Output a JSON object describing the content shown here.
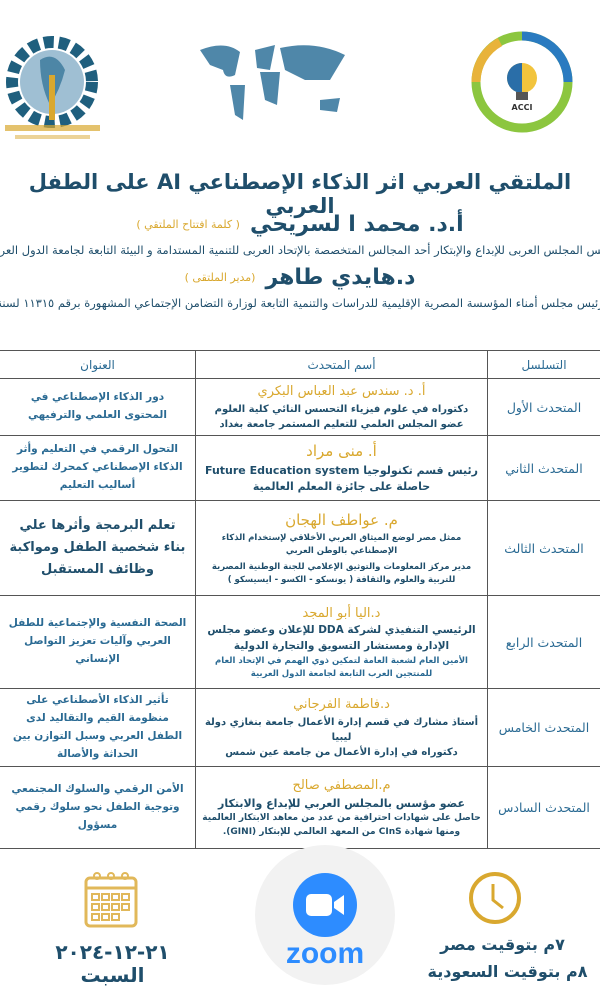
{
  "logos": {
    "left": "المؤسسة المصرية الإقليمية للدراسات والتنمية",
    "right": "ACCI"
  },
  "title": "الملتقي العربي اثر الذكاء الإصطناعي AI على الطفل العربي",
  "hosts": [
    {
      "name": "أ.د. محمد ا لسريحي",
      "role": "( كلمة افتتاح الملتقي )",
      "desc": "رئيس المجلس العربى للإبداع والإبتكار أحد المجالس المتخصصة بالإتحاد العربى للتنمية المستدامة و البيئة التابعة لجامعة الدول العربية"
    },
    {
      "name": "د.هايدي طاهر",
      "role": "(مدير الملتقى )",
      "desc": "رئيس مجلس أمناء المؤسسة المصرية الإقليمية للدراسات والتنمية التابعة لوزارة التضامن الإجتماعي المشهورة برقم ١١٣١٥ لسنة"
    }
  ],
  "table": {
    "headers": [
      "التسلسل",
      "أسم المتحدث",
      "العنوان"
    ],
    "rows": [
      {
        "seq": "المتحدث الأول",
        "name": "أ. د. سندس عبد العباس البكري",
        "lines": [
          "دكتوراه في علوم فيزياء التحسس النائي كلية العلوم",
          "عضو المجلس العلمي للتعليم المستمر جامعة بغداد"
        ],
        "topic": "دور الذكاء الإصطناعي في المحتوى العلمي والترفيهي"
      },
      {
        "seq": "المتحدث الثاني",
        "name": "أ. منى مراد",
        "lines": [
          "رئيس قسم تكنولوجيا Future Education system",
          "حاصلة على جائزة المعلم العالمية"
        ],
        "topic": "التحول الرقمي في التعليم وأثر الذكاء الإصطناعي كمحرك لتطوير أساليب التعليم"
      },
      {
        "seq": "المتحدث الثالث",
        "name": "م. عواطف الهجان",
        "lines": [
          "ممثل مصر لوضع الميثاق العربي الأخلاقي لإستخدام الذكاء الإصطناعي بالوطن العربي",
          "مدير مركز المعلومات والتوثيق الإعلامي للجنة الوطنية المصرية للتربية والعلوم والثقافة ( يونسكو - الكسو - ايسيسكو )"
        ],
        "topic": "تعلم البرمجة وأثرها علي بناء شخصية الطفل ومواكبة وظائف المستقبل"
      },
      {
        "seq": "المتحدث الرابع",
        "name": "د.اليا أبو المجد",
        "lines": [
          "الرئيسي التنفيذي لشركة DDA للإعلان وعضو مجلس الإدارة ومستشار التسويق والتجارة الدولية",
          "الأمين العام لشعبة العامة لتمكين ذوي الهمم في الإتحاد العام للمنتجين العرب التابعة لجامعة الدول العربية"
        ],
        "topic": "الصحة النفسية والإجتماعية للطفل العربي وآليات تعزيز التواصل الإنساني"
      },
      {
        "seq": "المتحدث الخامس",
        "name": "د.فاطمة الفرجاني",
        "lines": [
          "أستاذ مشارك في قسم إدارة الأعمال جامعة بنغازي دولة ليبيا",
          "دكتوراه في إدارة الأعمال من جامعة عين شمس"
        ],
        "topic": "تأثير الذكاء الأصطناعي على منظومة القيم والتقاليد لدى الطفل العربي وسبل التوازن بين الحداثة والأصالة"
      },
      {
        "seq": "المتحدث السادس",
        "name": "م.المصطفي صالح",
        "lines": [
          "عضو مؤسس بالمجلس العربي للإبداع والابتكار",
          "حاصل على شهادات احترافية من عدد من معاهد الابتكار العالمية ومنها شهادة CInS من المعهد العالمي للإبتكار (GINI)."
        ],
        "topic": "الأمن الرقمي والسلوك المجتمعي وتوجية الطفل نحو سلوك رقمي مسؤول"
      }
    ]
  },
  "footer": {
    "date": "٢١-١٢-٢٠٢٤",
    "day": "السبت",
    "platform": "zoom",
    "time_egypt": "٧م بتوقيت مصر",
    "time_saudi": "٨م بتوقيت السعودية"
  },
  "colors": {
    "primary": "#1f4e6b",
    "gold": "#d9a82f",
    "cell": "#2a6a93",
    "zoom": "#2d8cff"
  }
}
